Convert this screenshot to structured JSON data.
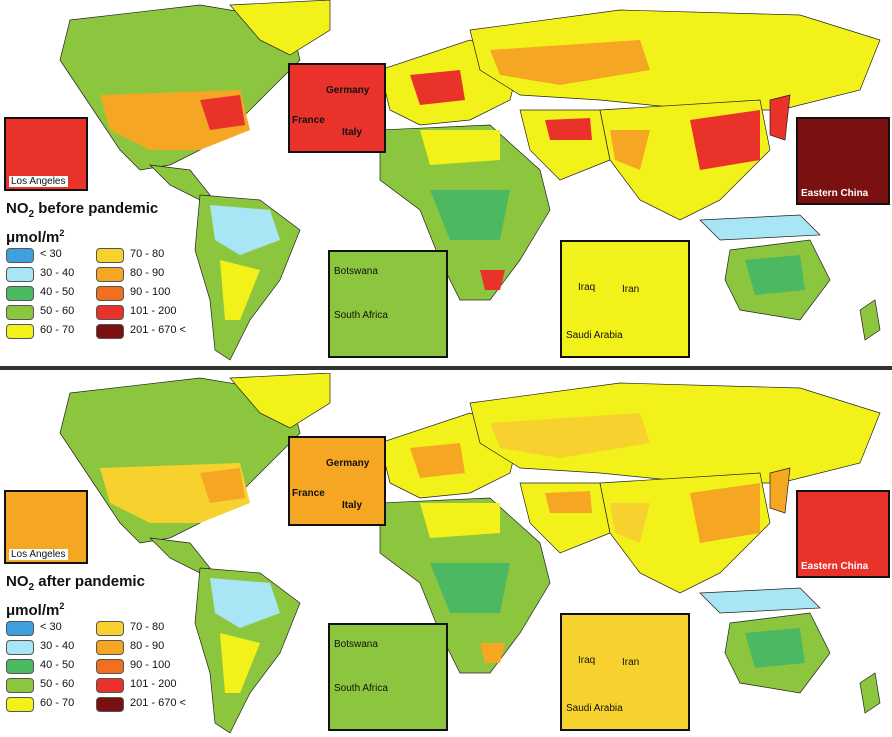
{
  "panels": [
    {
      "title_prefix": "NO",
      "title_sub": "2",
      "title_rest": " before pandemic",
      "unit_prefix": "μmol/m",
      "unit_sup": "2",
      "insets": {
        "la": "Los Angeles",
        "europe_germany": "Germany",
        "europe_france": "France",
        "europe_italy": "Italy",
        "china": "Eastern China",
        "africa_botswana": "Botswana",
        "africa_south_africa": "South Africa",
        "me_iraq": "Iraq",
        "me_iran": "Iran",
        "me_saudi": "Saudi Arabia"
      }
    },
    {
      "title_prefix": "NO",
      "title_sub": "2",
      "title_rest": " after pandemic",
      "unit_prefix": "μmol/m",
      "unit_sup": "2",
      "insets": {
        "la": "Los Angeles",
        "europe_germany": "Germany",
        "europe_france": "France",
        "europe_italy": "Italy",
        "china": "Eastern China",
        "africa_botswana": "Botswana",
        "africa_south_africa": "South Africa",
        "me_iraq": "Iraq",
        "me_iran": "Iran",
        "me_saudi": "Saudi Arabia"
      }
    }
  ],
  "legend": [
    {
      "label": "< 30",
      "color": "#3fa0e0"
    },
    {
      "label": "30 - 40",
      "color": "#a8e6f5"
    },
    {
      "label": "40 - 50",
      "color": "#4cb862"
    },
    {
      "label": "50 - 60",
      "color": "#8cc63f"
    },
    {
      "label": "60 - 70",
      "color": "#f2f21a"
    },
    {
      "label": "70 - 80",
      "color": "#f7d22e"
    },
    {
      "label": "80 - 90",
      "color": "#f5a623"
    },
    {
      "label": "90 - 100",
      "color": "#f07020"
    },
    {
      "label": "101 - 200",
      "color": "#e8322a"
    },
    {
      "label": "201 - 670 <",
      "color": "#7a1010"
    }
  ]
}
